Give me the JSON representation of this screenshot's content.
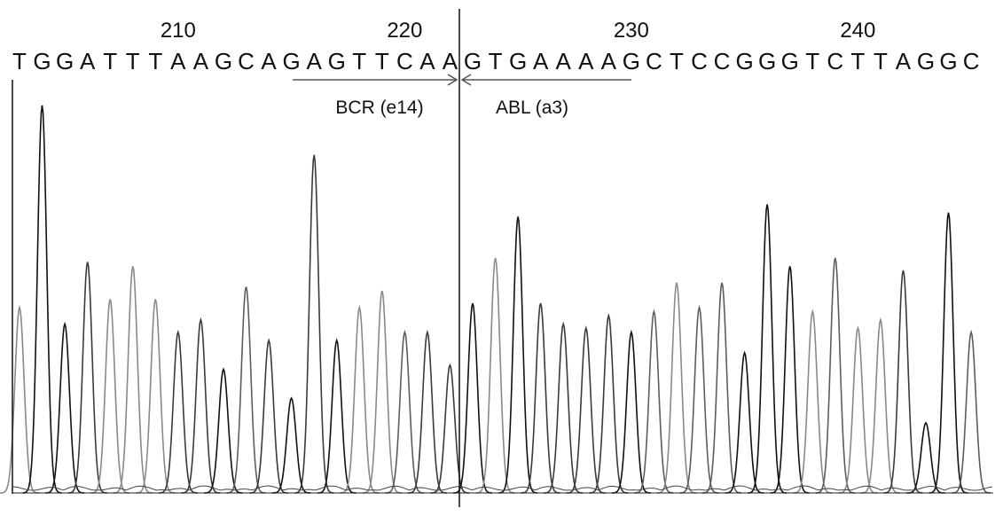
{
  "chart_data": {
    "type": "line",
    "title": "",
    "xlabel": "",
    "ylabel": "",
    "sequence": [
      "T",
      "G",
      "G",
      "A",
      "T",
      "T",
      "T",
      "A",
      "A",
      "G",
      "C",
      "A",
      "G",
      "A",
      "G",
      "T",
      "T",
      "C",
      "A",
      "A",
      "G",
      "T",
      "G",
      "A",
      "A",
      "A",
      "A",
      "G",
      "C",
      "T",
      "C",
      "C",
      "G",
      "G",
      "G",
      "T",
      "C",
      "T",
      "T",
      "A",
      "G",
      "G",
      "C"
    ],
    "first_position": 203,
    "position_ticks": [
      {
        "label": "210",
        "position": 210
      },
      {
        "label": "220",
        "position": 220
      },
      {
        "label": "230",
        "position": 230
      },
      {
        "label": "240",
        "position": 240
      }
    ],
    "peak_relative_intensity": [
      45,
      94,
      41,
      56,
      47,
      55,
      47,
      39,
      42,
      30,
      50,
      37,
      23,
      82,
      37,
      45,
      49,
      39,
      39,
      31,
      46,
      57,
      67,
      46,
      41,
      40,
      43,
      39,
      44,
      51,
      45,
      51,
      34,
      70,
      55,
      44,
      57,
      40,
      42,
      54,
      17,
      68,
      39
    ],
    "junction_after_position": 222,
    "annotations": [
      {
        "label": "BCR (e14)",
        "direction": "right"
      },
      {
        "label": "ABL (a3)",
        "direction": "left"
      }
    ],
    "base_colors": {
      "G": "#111111",
      "A": "#3a3a3a",
      "T": "#8a8a8a",
      "C": "#5c5c5c"
    }
  }
}
